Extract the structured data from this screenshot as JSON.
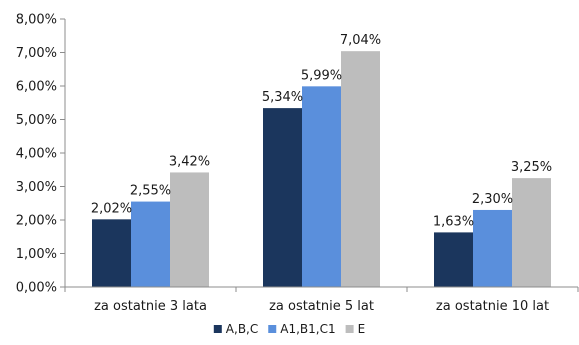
{
  "chart_data": {
    "type": "bar",
    "categories": [
      "za ostatnie 3 lata",
      "za ostatnie 5 lat",
      "za ostatnie 10 lat"
    ],
    "series": [
      {
        "name": "A,B,C",
        "color": "#1b365d",
        "values": [
          2.02,
          5.34,
          1.63
        ],
        "labels": [
          "2,02%",
          "5,34%",
          "1,63%"
        ]
      },
      {
        "name": "A1,B1,C1",
        "color": "#5a8fdc",
        "values": [
          2.55,
          5.99,
          2.3
        ],
        "labels": [
          "2,55%",
          "5,99%",
          "2,30%"
        ]
      },
      {
        "name": "E",
        "color": "#bdbdbd",
        "values": [
          3.42,
          7.04,
          3.25
        ],
        "labels": [
          "3,42%",
          "7,04%",
          "3,25%"
        ]
      }
    ],
    "y_ticks": [
      "0,00%",
      "1,00%",
      "2,00%",
      "3,00%",
      "4,00%",
      "5,00%",
      "6,00%",
      "7,00%",
      "8,00%"
    ],
    "ylim": [
      0,
      8
    ],
    "grid": false,
    "legend_position": "bottom-center"
  }
}
